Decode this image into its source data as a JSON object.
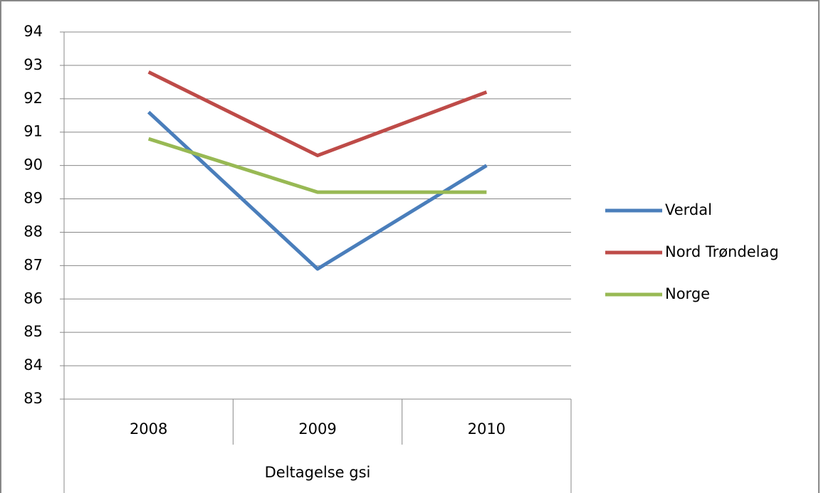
{
  "chart_data": {
    "type": "line",
    "categories": [
      "2008",
      "2009",
      "2010"
    ],
    "category_group": "Deltagelse gsi",
    "series": [
      {
        "name": "Verdal",
        "color": "#4a7ebb",
        "values": [
          91.6,
          86.9,
          90.0
        ]
      },
      {
        "name": "Nord Trøndelag",
        "color": "#be4b48",
        "values": [
          92.8,
          90.3,
          92.2
        ]
      },
      {
        "name": "Norge",
        "color": "#98b954",
        "values": [
          90.8,
          89.2,
          89.2
        ]
      }
    ],
    "ylim": [
      83,
      94
    ],
    "yticks": [
      83,
      84,
      85,
      86,
      87,
      88,
      89,
      90,
      91,
      92,
      93,
      94
    ],
    "grid": true,
    "legend": "right"
  }
}
